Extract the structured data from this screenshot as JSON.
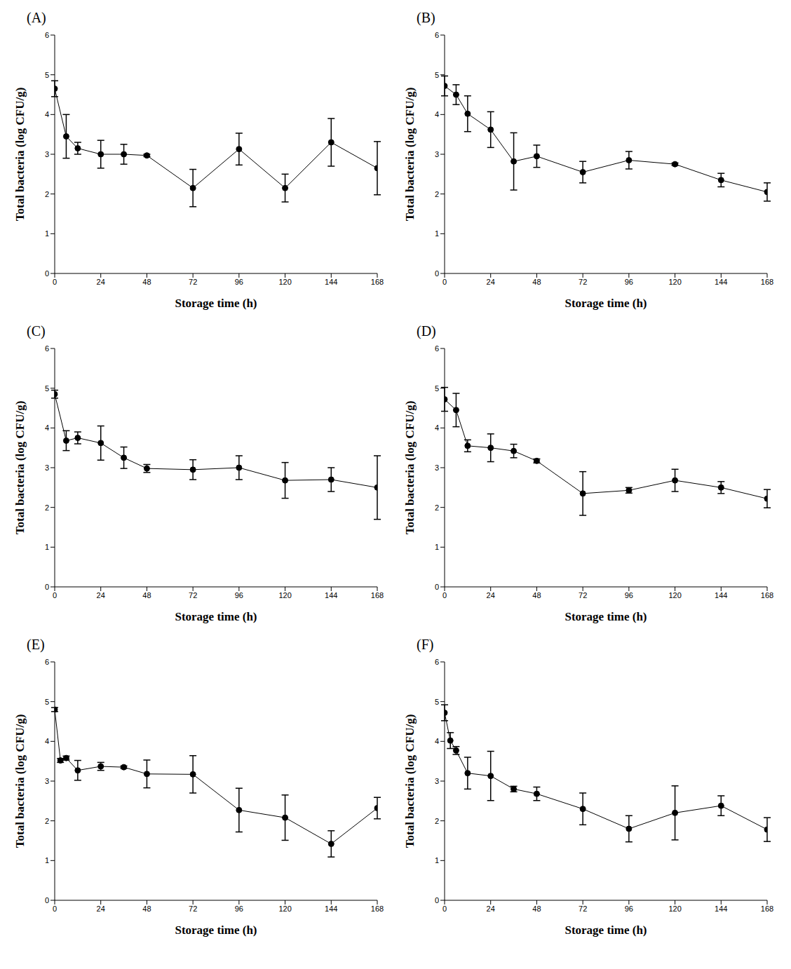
{
  "chart_data": [
    {
      "type": "line",
      "title": "(A)",
      "x_label": "Storage time (h)",
      "y_label": "Total bacteria (log CFU/g)",
      "x": [
        0,
        6,
        12,
        24,
        36,
        48,
        72,
        96,
        120,
        144,
        168
      ],
      "values": [
        4.65,
        3.45,
        3.15,
        3.0,
        3.0,
        2.97,
        2.15,
        3.13,
        2.15,
        3.3,
        2.65
      ],
      "error": [
        0.2,
        0.55,
        0.15,
        0.35,
        0.25,
        0.03,
        0.47,
        0.4,
        0.35,
        0.6,
        0.67
      ],
      "xlim": [
        0,
        168
      ],
      "xticks": [
        0,
        24,
        48,
        72,
        96,
        120,
        144,
        168
      ],
      "ylim": [
        0,
        6
      ],
      "yticks": [
        0,
        1,
        2,
        3,
        4,
        5,
        6
      ],
      "color": "#000000",
      "marker": "circle",
      "grid": false
    },
    {
      "type": "line",
      "title": "(B)",
      "x_label": "Storage time (h)",
      "y_label": "Total bacteria (log CFU/g)",
      "x": [
        0,
        6,
        12,
        24,
        36,
        48,
        72,
        96,
        120,
        144,
        168
      ],
      "values": [
        4.72,
        4.5,
        4.02,
        3.62,
        2.82,
        2.95,
        2.55,
        2.85,
        2.75,
        2.35,
        2.05
      ],
      "error": [
        0.25,
        0.25,
        0.45,
        0.45,
        0.72,
        0.28,
        0.27,
        0.22,
        0.03,
        0.17,
        0.23
      ],
      "xlim": [
        0,
        168
      ],
      "xticks": [
        0,
        24,
        48,
        72,
        96,
        120,
        144,
        168
      ],
      "ylim": [
        0,
        6
      ],
      "yticks": [
        0,
        1,
        2,
        3,
        4,
        5,
        6
      ],
      "color": "#000000",
      "marker": "circle",
      "grid": false
    },
    {
      "type": "line",
      "title": "(C)",
      "x_label": "Storage time (h)",
      "y_label": "Total bacteria (log CFU/g)",
      "x": [
        0,
        6,
        12,
        24,
        36,
        48,
        72,
        96,
        120,
        144,
        168
      ],
      "values": [
        4.85,
        3.68,
        3.75,
        3.62,
        3.25,
        2.98,
        2.95,
        3.0,
        2.68,
        2.7,
        2.5
      ],
      "error": [
        0.1,
        0.25,
        0.15,
        0.43,
        0.27,
        0.1,
        0.25,
        0.3,
        0.45,
        0.3,
        0.8
      ],
      "xlim": [
        0,
        168
      ],
      "xticks": [
        0,
        24,
        48,
        72,
        96,
        120,
        144,
        168
      ],
      "ylim": [
        0,
        6
      ],
      "yticks": [
        0,
        1,
        2,
        3,
        4,
        5,
        6
      ],
      "color": "#000000",
      "marker": "circle",
      "grid": false
    },
    {
      "type": "line",
      "title": "(D)",
      "x_label": "Storage time (h)",
      "y_label": "Total bacteria (log CFU/g)",
      "x": [
        0,
        6,
        12,
        24,
        36,
        48,
        72,
        96,
        120,
        144,
        168
      ],
      "values": [
        4.72,
        4.45,
        3.55,
        3.5,
        3.42,
        3.17,
        2.35,
        2.43,
        2.68,
        2.5,
        2.22
      ],
      "error": [
        0.3,
        0.42,
        0.15,
        0.35,
        0.17,
        0.05,
        0.55,
        0.07,
        0.28,
        0.15,
        0.23
      ],
      "xlim": [
        0,
        168
      ],
      "xticks": [
        0,
        24,
        48,
        72,
        96,
        120,
        144,
        168
      ],
      "ylim": [
        0,
        6
      ],
      "yticks": [
        0,
        1,
        2,
        3,
        4,
        5,
        6
      ],
      "color": "#000000",
      "marker": "circle",
      "grid": false
    },
    {
      "type": "line",
      "title": "(E)",
      "x_label": "Storage time (h)",
      "y_label": "Total bacteria (log CFU/g)",
      "x": [
        0,
        3,
        6,
        12,
        24,
        36,
        48,
        72,
        96,
        120,
        144,
        168
      ],
      "values": [
        4.8,
        3.52,
        3.58,
        3.27,
        3.37,
        3.35,
        3.18,
        3.17,
        2.27,
        2.08,
        1.42,
        2.32
      ],
      "error": [
        0.05,
        0.05,
        0.05,
        0.25,
        0.1,
        0.03,
        0.35,
        0.47,
        0.55,
        0.57,
        0.33,
        0.27
      ],
      "xlim": [
        0,
        168
      ],
      "xticks": [
        0,
        24,
        48,
        72,
        96,
        120,
        144,
        168
      ],
      "ylim": [
        0,
        6
      ],
      "yticks": [
        0,
        1,
        2,
        3,
        4,
        5,
        6
      ],
      "color": "#000000",
      "marker": "circle",
      "grid": false
    },
    {
      "type": "line",
      "title": "(F)",
      "x_label": "Storage time (h)",
      "y_label": "Total bacteria (log CFU/g)",
      "x": [
        0,
        3,
        6,
        12,
        24,
        36,
        48,
        72,
        96,
        120,
        144,
        168
      ],
      "values": [
        4.72,
        4.02,
        3.77,
        3.2,
        3.13,
        2.8,
        2.68,
        2.3,
        1.8,
        2.2,
        2.38,
        1.78
      ],
      "error": [
        0.2,
        0.2,
        0.1,
        0.4,
        0.62,
        0.07,
        0.17,
        0.4,
        0.33,
        0.68,
        0.25,
        0.3
      ],
      "xlim": [
        0,
        168
      ],
      "xticks": [
        0,
        24,
        48,
        72,
        96,
        120,
        144,
        168
      ],
      "ylim": [
        0,
        6
      ],
      "yticks": [
        0,
        1,
        2,
        3,
        4,
        5,
        6
      ],
      "color": "#000000",
      "marker": "circle",
      "grid": false
    }
  ]
}
